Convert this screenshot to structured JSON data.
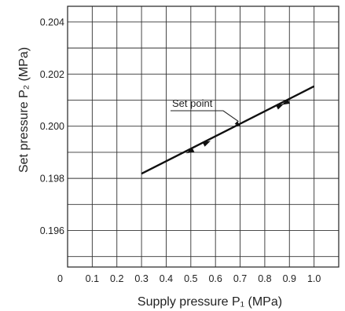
{
  "chart_data": {
    "type": "line",
    "xlabel": "Supply pressure  P₁ (MPa)",
    "ylabel": "Set pressure  P₂ (MPa)",
    "xlim": [
      0,
      1.1
    ],
    "ylim": [
      0.1946,
      0.2046
    ],
    "x_ticks": [
      {
        "value": 0.1,
        "label": "0.1"
      },
      {
        "value": 0.2,
        "label": "0.2"
      },
      {
        "value": 0.3,
        "label": "0.3"
      },
      {
        "value": 0.4,
        "label": "0.4"
      },
      {
        "value": 0.5,
        "label": "0.5"
      },
      {
        "value": 0.6,
        "label": "0.6"
      },
      {
        "value": 0.7,
        "label": "0.7"
      },
      {
        "value": 0.8,
        "label": "0.8"
      },
      {
        "value": 0.9,
        "label": "0.9"
      },
      {
        "value": 1.0,
        "label": "1.0"
      }
    ],
    "y_ticks": [
      {
        "value": 0.196,
        "label": "0.196"
      },
      {
        "value": 0.198,
        "label": "0.198"
      },
      {
        "value": 0.2,
        "label": "0.200"
      },
      {
        "value": 0.202,
        "label": "0.202"
      },
      {
        "value": 0.204,
        "label": "0.204"
      }
    ],
    "origin_label": "0",
    "grid": true,
    "series": [
      {
        "direction": "increasing",
        "x": [
          0.3,
          1.0
        ],
        "y": [
          0.19818,
          0.20153
        ]
      },
      {
        "direction": "decreasing",
        "x": [
          1.0,
          0.7,
          0.3
        ],
        "y": [
          0.20153,
          0.20009,
          0.19818
        ]
      }
    ],
    "annotations": [
      {
        "text": "Set point",
        "x": 0.7,
        "y": 0.2
      }
    ]
  }
}
